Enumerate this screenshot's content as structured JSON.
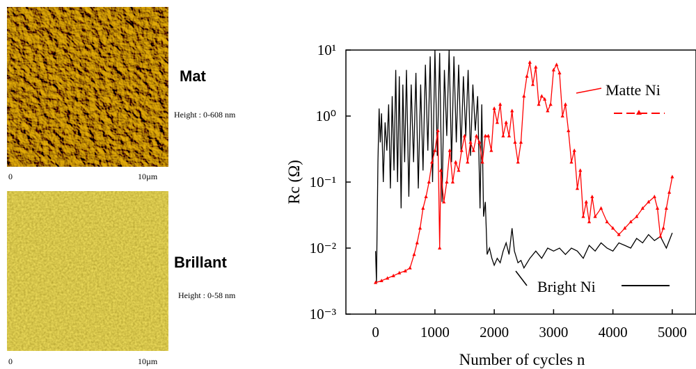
{
  "images": [
    {
      "label": "Mat",
      "height": "Height : 0-608 nm",
      "scale_start": "0",
      "scale_end": "10µm"
    },
    {
      "label": "Brillant",
      "height": "Height : 0-58 nm",
      "scale_start": "0",
      "scale_end": "10µm"
    }
  ],
  "chart_data": {
    "type": "line",
    "x_label": "Number of cycles n",
    "y_label": "Rc (Ω)",
    "log_y": true,
    "xlim": [
      -500,
      5400
    ],
    "xticks": [
      0,
      1000,
      2000,
      3000,
      4000,
      5000
    ],
    "ylim": [
      0.001,
      10
    ],
    "yticks": [
      {
        "value": 10,
        "label": "10¹"
      },
      {
        "value": 1,
        "label": "10⁰"
      },
      {
        "value": 0.1,
        "label": "10⁻¹"
      },
      {
        "value": 0.01,
        "label": "10⁻²"
      },
      {
        "value": 0.001,
        "label": "10⁻³"
      }
    ],
    "series": [
      {
        "name": "Bright Ni",
        "color": "#000000",
        "marker": "none",
        "x": [
          0,
          15,
          40,
          60,
          80,
          100,
          130,
          160,
          190,
          220,
          250,
          280,
          310,
          340,
          370,
          400,
          430,
          460,
          490,
          520,
          560,
          600,
          640,
          680,
          720,
          760,
          800,
          840,
          880,
          920,
          960,
          1000,
          1040,
          1080,
          1120,
          1160,
          1200,
          1240,
          1280,
          1320,
          1360,
          1400,
          1440,
          1480,
          1520,
          1560,
          1600,
          1640,
          1680,
          1720,
          1760,
          1790,
          1820,
          1850,
          1880,
          1920,
          1960,
          2000,
          2050,
          2100,
          2150,
          2200,
          2250,
          2300,
          2340,
          2400,
          2450,
          2500,
          2600,
          2700,
          2800,
          2900,
          3000,
          3100,
          3200,
          3300,
          3400,
          3500,
          3600,
          3700,
          3800,
          3900,
          4000,
          4100,
          4200,
          4300,
          4400,
          4500,
          4600,
          4700,
          4800,
          4900,
          5000
        ],
        "values": [
          0.009,
          0.003,
          0.2,
          1.3,
          0.4,
          1.1,
          0.1,
          0.8,
          0.3,
          1.5,
          0.08,
          2,
          0.15,
          5,
          0.1,
          4,
          0.04,
          3,
          0.2,
          5,
          0.06,
          3,
          0.2,
          4.5,
          0.08,
          3,
          0.15,
          6,
          0.3,
          8,
          0.1,
          10,
          0.25,
          9,
          0.05,
          5,
          0.5,
          10,
          0.2,
          8,
          0.4,
          6,
          0.3,
          4,
          0.5,
          5,
          0.25,
          3,
          0.6,
          2,
          0.04,
          1.5,
          0.03,
          0.05,
          0.008,
          0.01,
          0.007,
          0.0055,
          0.007,
          0.006,
          0.009,
          0.012,
          0.008,
          0.02,
          0.009,
          0.006,
          0.0065,
          0.005,
          0.007,
          0.009,
          0.007,
          0.01,
          0.009,
          0.01,
          0.008,
          0.01,
          0.009,
          0.007,
          0.011,
          0.009,
          0.012,
          0.01,
          0.009,
          0.012,
          0.011,
          0.01,
          0.014,
          0.012,
          0.016,
          0.013,
          0.015,
          0.01,
          0.017
        ]
      },
      {
        "name": "Matte Ni",
        "color": "#ff0000",
        "marker": "triangle",
        "x": [
          0,
          100,
          200,
          300,
          400,
          500,
          580,
          650,
          700,
          750,
          800,
          850,
          900,
          950,
          1000,
          1050,
          1080,
          1100,
          1150,
          1200,
          1250,
          1300,
          1350,
          1400,
          1450,
          1500,
          1550,
          1600,
          1650,
          1700,
          1750,
          1800,
          1850,
          1900,
          1950,
          2000,
          2050,
          2100,
          2150,
          2200,
          2250,
          2300,
          2350,
          2400,
          2450,
          2500,
          2550,
          2600,
          2650,
          2700,
          2750,
          2800,
          2850,
          2900,
          2950,
          3000,
          3050,
          3100,
          3150,
          3200,
          3250,
          3300,
          3350,
          3400,
          3450,
          3500,
          3550,
          3600,
          3650,
          3700,
          3800,
          3900,
          4000,
          4100,
          4200,
          4300,
          4400,
          4500,
          4600,
          4700,
          4750,
          4800,
          4850,
          4900,
          4950,
          5000
        ],
        "values": [
          0.003,
          0.0032,
          0.0035,
          0.0038,
          0.0042,
          0.0045,
          0.005,
          0.008,
          0.012,
          0.02,
          0.04,
          0.06,
          0.1,
          0.2,
          0.3,
          0.6,
          0.01,
          0.15,
          0.05,
          0.1,
          0.3,
          0.1,
          0.2,
          0.15,
          0.3,
          0.5,
          0.2,
          0.4,
          0.3,
          0.5,
          0.4,
          0.2,
          0.5,
          0.5,
          0.3,
          1.3,
          0.8,
          1.5,
          0.5,
          0.8,
          0.5,
          1.2,
          0.4,
          0.2,
          0.4,
          2,
          4,
          6.5,
          3,
          5.5,
          1.5,
          2,
          1.8,
          1.2,
          1.5,
          5,
          6,
          4.5,
          1,
          1.5,
          0.6,
          0.2,
          0.3,
          0.08,
          0.15,
          0.03,
          0.05,
          0.025,
          0.06,
          0.03,
          0.04,
          0.025,
          0.02,
          0.016,
          0.02,
          0.025,
          0.03,
          0.04,
          0.05,
          0.06,
          0.04,
          0.015,
          0.02,
          0.04,
          0.07,
          0.12
        ]
      }
    ]
  }
}
